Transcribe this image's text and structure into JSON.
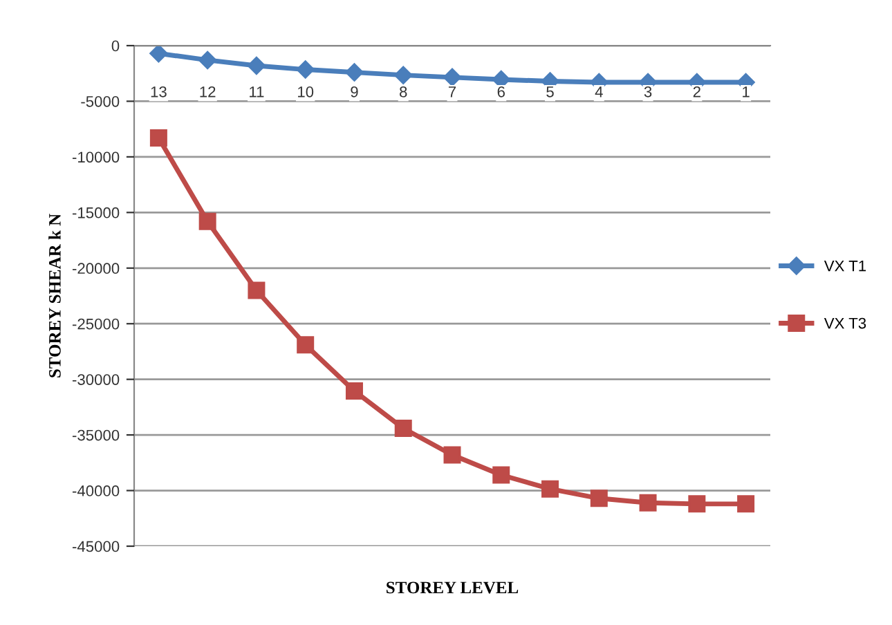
{
  "chart_data": {
    "type": "line",
    "xlabel": "STOREY LEVEL",
    "ylabel": "STOREY SHEAR k N",
    "categories": [
      "13",
      "12",
      "11",
      "10",
      "9",
      "8",
      "7",
      "6",
      "5",
      "4",
      "3",
      "2",
      "1"
    ],
    "series": [
      {
        "name": "VX T1",
        "color": "#4a7ebb",
        "marker": "diamond",
        "values": [
          -700,
          -1300,
          -1800,
          -2150,
          -2400,
          -2650,
          -2850,
          -3050,
          -3200,
          -3300,
          -3300,
          -3300,
          -3300
        ]
      },
      {
        "name": "VX T3",
        "color": "#be4b48",
        "marker": "square",
        "values": [
          -8300,
          -15800,
          -22000,
          -26900,
          -31050,
          -34400,
          -36800,
          -38600,
          -39850,
          -40700,
          -41100,
          -41200,
          -41200
        ]
      }
    ],
    "ylim": [
      -45000,
      0
    ],
    "yticks": [
      0,
      -5000,
      -10000,
      -15000,
      -20000,
      -25000,
      -30000,
      -35000,
      -40000,
      -45000
    ],
    "grid": "y",
    "legend": "right",
    "line_style": "solid"
  }
}
